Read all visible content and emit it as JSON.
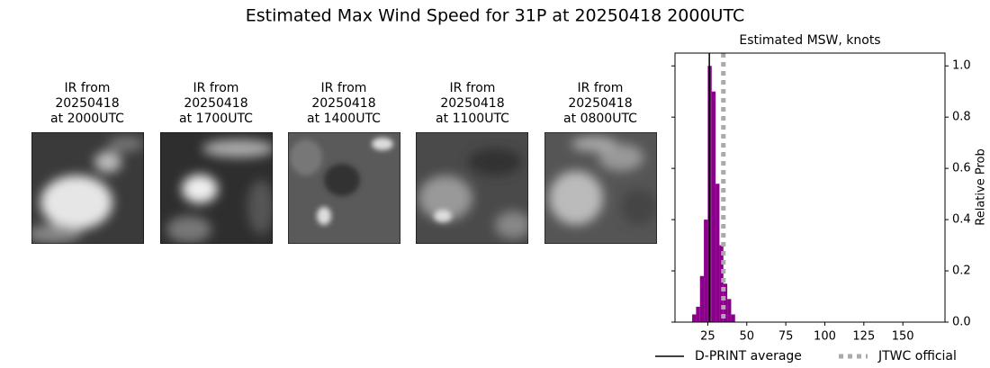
{
  "title": "Estimated Max Wind Speed for 31P at 20250418 2000UTC",
  "images": [
    {
      "title": [
        "IR from",
        "20250418",
        "at 2000UTC"
      ]
    },
    {
      "title": [
        "IR from",
        "20250418",
        "at 1700UTC"
      ]
    },
    {
      "title": [
        "IR from",
        "20250418",
        "at 1400UTC"
      ]
    },
    {
      "title": [
        "IR from",
        "20250418",
        "at 1100UTC"
      ]
    },
    {
      "title": [
        "IR from",
        "20250418",
        "at 0800UTC"
      ]
    }
  ],
  "chart_data": {
    "type": "histogram",
    "title": "Estimated MSW, knots",
    "y_label": "Relative Prob",
    "bins": [
      15,
      17.5,
      20,
      22.5,
      25,
      27.5,
      30,
      32.5,
      35,
      37.5,
      40,
      42.5
    ],
    "values": [
      0.03,
      0.06,
      0.18,
      0.4,
      1.0,
      0.9,
      0.54,
      0.3,
      0.15,
      0.09,
      0.03
    ],
    "color": "#8b008b",
    "xlim": [
      4,
      177
    ],
    "ylim": [
      0,
      1.05
    ],
    "xticks": [
      25,
      50,
      75,
      100,
      125,
      150
    ],
    "yticks": [
      {
        "value": 0,
        "label": "0.0"
      },
      {
        "value": 0.2,
        "label": "0.2"
      },
      {
        "value": 0.4,
        "label": "0.4"
      },
      {
        "value": 0.6,
        "label": "0.6"
      },
      {
        "value": 0.8,
        "label": "0.8"
      },
      {
        "value": 1,
        "label": "1.0"
      }
    ],
    "reference_lines": [
      {
        "name": "D-PRINT average",
        "value": 26,
        "color": "#000000",
        "style": "solid"
      },
      {
        "name": "JTWC official",
        "value": 35,
        "color": "#aaaaaa",
        "style": "dotted"
      }
    ]
  }
}
